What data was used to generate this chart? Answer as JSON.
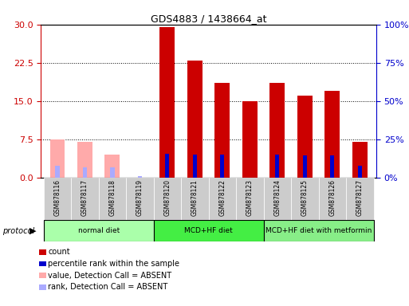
{
  "title": "GDS4883 / 1438664_at",
  "samples": [
    "GSM878116",
    "GSM878117",
    "GSM878118",
    "GSM878119",
    "GSM878120",
    "GSM878121",
    "GSM878122",
    "GSM878123",
    "GSM878124",
    "GSM878125",
    "GSM878126",
    "GSM878127"
  ],
  "count_values": [
    null,
    null,
    null,
    null,
    29.5,
    23.0,
    18.5,
    15.0,
    18.5,
    16.0,
    17.0,
    7.0
  ],
  "rank_values": [
    null,
    null,
    null,
    null,
    15.5,
    15.0,
    15.0,
    null,
    15.0,
    14.5,
    14.5,
    7.5
  ],
  "count_absent": [
    7.5,
    7.0,
    4.5,
    null,
    null,
    null,
    null,
    null,
    null,
    null,
    null,
    null
  ],
  "rank_absent": [
    7.5,
    6.5,
    6.5,
    1.0,
    null,
    null,
    null,
    null,
    null,
    null,
    null,
    null
  ],
  "protocols": [
    {
      "label": "normal diet",
      "start": 0,
      "end": 4,
      "color": "#aaffaa"
    },
    {
      "label": "MCD+HF diet",
      "start": 4,
      "end": 8,
      "color": "#44ee44"
    },
    {
      "label": "MCD+HF diet with metformin",
      "start": 8,
      "end": 12,
      "color": "#88ee88"
    }
  ],
  "left_ylim": [
    0,
    30
  ],
  "right_ylim": [
    0,
    100
  ],
  "left_yticks": [
    0,
    7.5,
    15,
    22.5,
    30
  ],
  "right_yticks": [
    0,
    25,
    50,
    75,
    100
  ],
  "count_color": "#cc0000",
  "rank_color": "#0000cc",
  "count_absent_color": "#ffaaaa",
  "rank_absent_color": "#aaaaff",
  "bg_color": "#ffffff",
  "tick_label_bg": "#cccccc",
  "bar_width": 0.55,
  "rank_bar_width": 0.15
}
